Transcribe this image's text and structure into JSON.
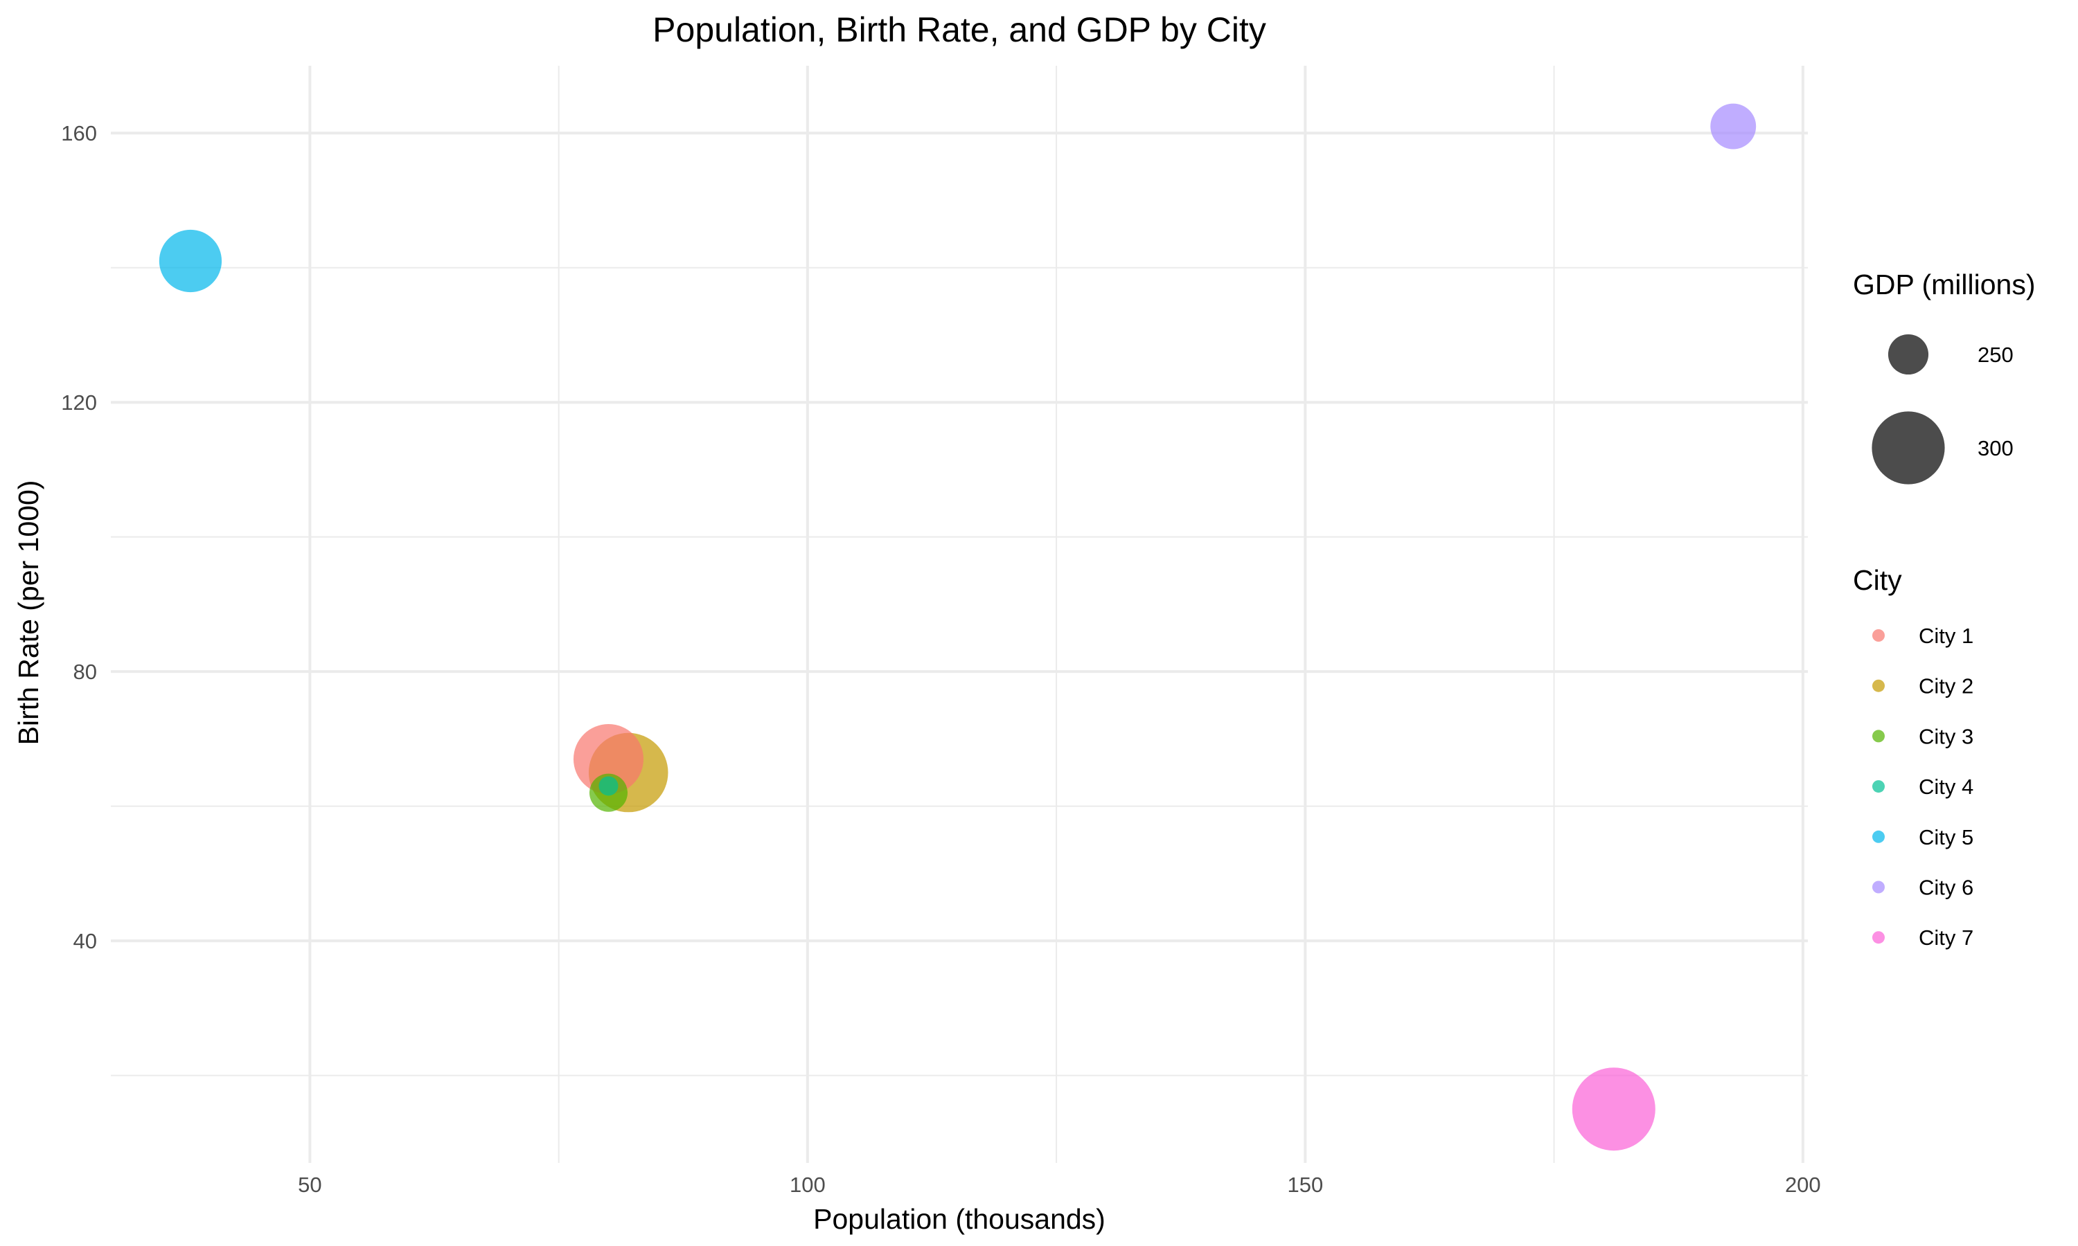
{
  "chart_data": {
    "type": "scatter",
    "title": "Population, Birth Rate, and GDP by City",
    "xlabel": "Population (thousands)",
    "ylabel": "Birth Rate (per 1000)",
    "xlim": [
      30,
      200.5
    ],
    "ylim": [
      7,
      170
    ],
    "x_ticks": [
      50,
      100,
      150,
      200
    ],
    "y_ticks": [
      40,
      80,
      120,
      160
    ],
    "grid": true,
    "legend_placement": "right",
    "size_legend": {
      "title": "GDP (millions)",
      "entries": [
        {
          "label": "250",
          "value": 250
        },
        {
          "label": "300",
          "value": 300
        }
      ]
    },
    "color_legend": {
      "title": "City",
      "entries": [
        {
          "label": "City 1",
          "color": "#F8766D"
        },
        {
          "label": "City 2",
          "color": "#C49A00"
        },
        {
          "label": "City 3",
          "color": "#53B400"
        },
        {
          "label": "City 4",
          "color": "#00C094"
        },
        {
          "label": "City 5",
          "color": "#00B6EB"
        },
        {
          "label": "City 6",
          "color": "#A58AFF"
        },
        {
          "label": "City 7",
          "color": "#FB61D7"
        }
      ]
    },
    "points": [
      {
        "city": "City 1",
        "x": 80,
        "y": 67,
        "gdp": 285
      },
      {
        "city": "City 2",
        "x": 82,
        "y": 65,
        "gdp": 310
      },
      {
        "city": "City 3",
        "x": 80,
        "y": 62,
        "gdp": 200
      },
      {
        "city": "City 4",
        "x": 80,
        "y": 63,
        "gdp": 150
      },
      {
        "city": "City 5",
        "x": 38,
        "y": 141,
        "gdp": 265
      },
      {
        "city": "City 6",
        "x": 193,
        "y": 161,
        "gdp": 220
      },
      {
        "city": "City 7",
        "x": 181,
        "y": 15,
        "gdp": 320
      }
    ]
  }
}
